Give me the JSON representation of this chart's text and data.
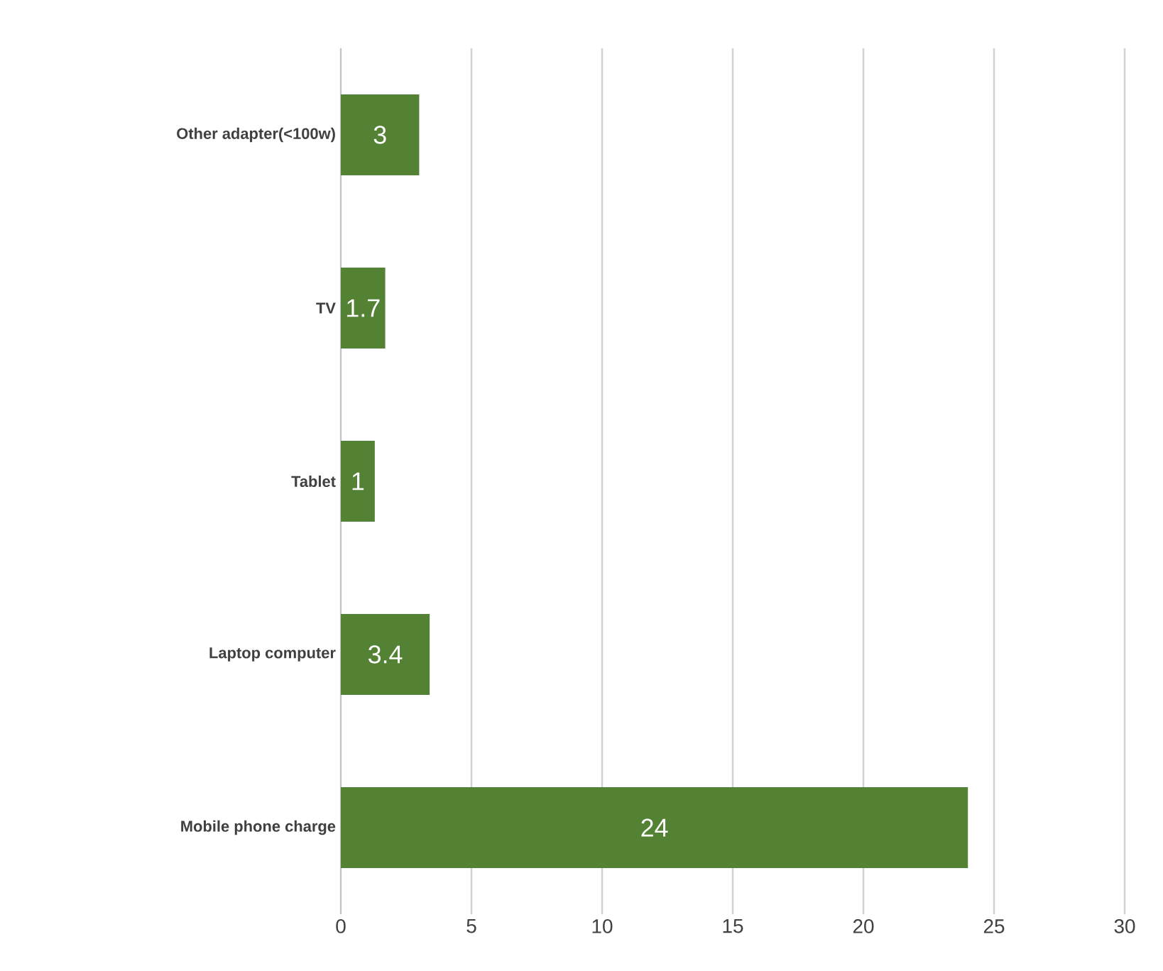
{
  "chart_data": {
    "type": "bar",
    "orientation": "horizontal",
    "categories": [
      "Other adapter(<100w)",
      "TV",
      "Tablet",
      "Laptop computer",
      "Mobile phone charge"
    ],
    "values": [
      3,
      1.7,
      1.3,
      3.4,
      24
    ],
    "value_labels": [
      "3",
      "1.7",
      "1",
      "3.4",
      "24"
    ],
    "color": "#548235",
    "xlim": [
      0,
      30
    ],
    "xticks": [
      0,
      5,
      10,
      15,
      20,
      25,
      30
    ],
    "grid": "x"
  }
}
